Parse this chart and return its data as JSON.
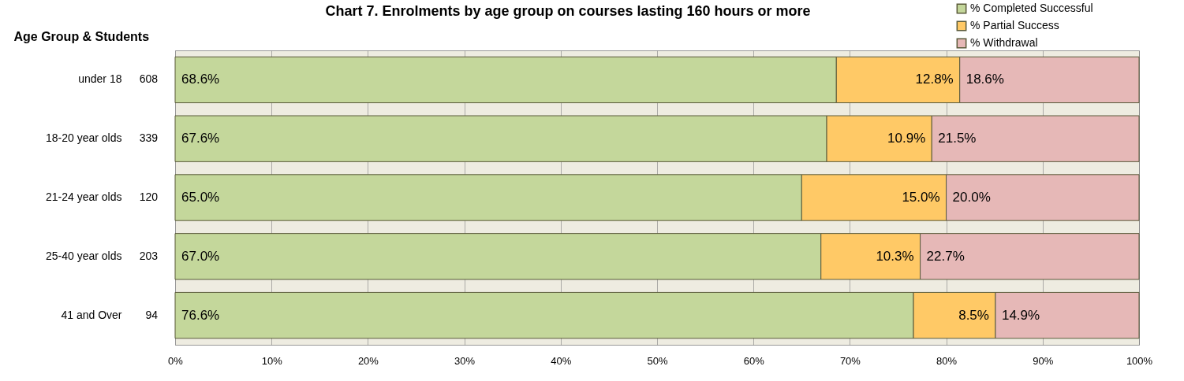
{
  "chart_data": {
    "type": "bar",
    "orientation": "horizontal",
    "stacked": true,
    "title": "Chart 7. Enrolments by age group on courses lasting 160 hours or more",
    "ylabel": "Age Group & Students",
    "categories": [
      "under 18",
      "18-20 year olds",
      "21-24 year olds",
      "25-40 year olds",
      "41 and Over"
    ],
    "y2_categories": [
      "608",
      "339",
      "120",
      "203",
      "94"
    ],
    "series": [
      {
        "name": "% Completed Successful",
        "color": "#c4d79b",
        "values": [
          68.6,
          67.6,
          65.0,
          67.0,
          76.6
        ],
        "value_labels": [
          "68.6%",
          "67.6%",
          "65.0%",
          "67.0%",
          "76.6%"
        ]
      },
      {
        "name": "% Partial Success",
        "color": "#ffc966",
        "values": [
          12.8,
          10.9,
          15.0,
          10.3,
          8.5
        ],
        "value_labels": [
          "12.8%",
          "10.9%",
          "15.0%",
          "10.3%",
          "8.5%"
        ]
      },
      {
        "name": "% Withdrawal",
        "color": "#e6b8b7",
        "values": [
          18.6,
          21.5,
          20.0,
          22.7,
          14.9
        ],
        "value_labels": [
          "18.6%",
          "21.5%",
          "20.0%",
          "22.7%",
          "14.9%"
        ]
      }
    ],
    "xlim": [
      0,
      100
    ],
    "xticks": [
      {
        "value": 0,
        "label": "0%"
      },
      {
        "value": 10,
        "label": "10%"
      },
      {
        "value": 20,
        "label": "20%"
      },
      {
        "value": 30,
        "label": "30%"
      },
      {
        "value": 40,
        "label": "40%"
      },
      {
        "value": 50,
        "label": "50%"
      },
      {
        "value": 60,
        "label": "60%"
      },
      {
        "value": 70,
        "label": "70%"
      },
      {
        "value": 80,
        "label": "80%"
      },
      {
        "value": 90,
        "label": "90%"
      },
      {
        "value": 100,
        "label": "100%"
      }
    ],
    "grid": "x",
    "legend": "top right"
  }
}
